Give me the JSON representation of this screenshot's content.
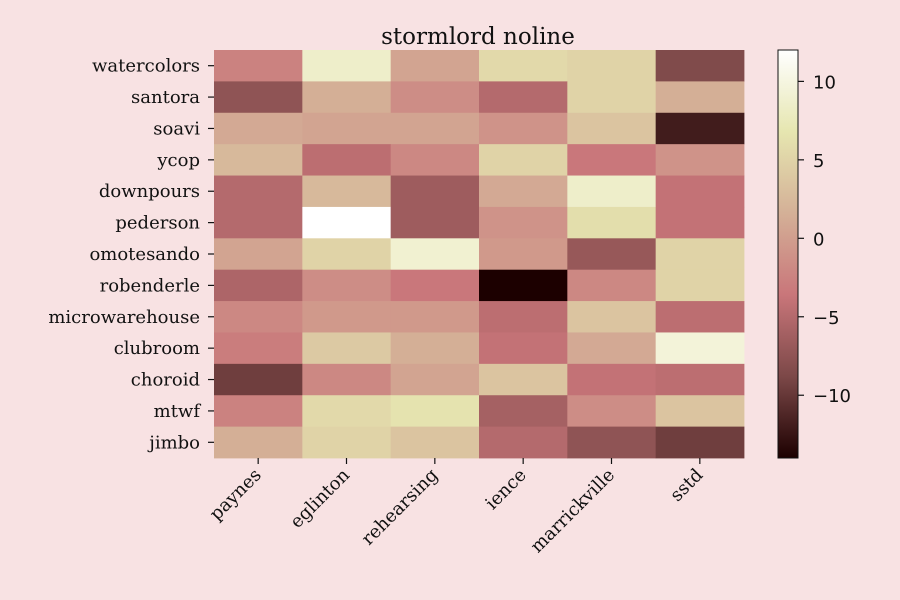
{
  "chart_data": {
    "type": "heatmap",
    "title": "stormlord noline",
    "xlabel": "",
    "ylabel": "",
    "x_categories": [
      "paynes",
      "eglinton",
      "rehearsing",
      "ience",
      "marrickville",
      "sstd"
    ],
    "y_categories": [
      "watercolors",
      "santora",
      "soavi",
      "ycop",
      "downpours",
      "pederson",
      "omotesando",
      "robenderle",
      "microwarehouse",
      "clubroom",
      "choroid",
      "mtwf",
      "jimbo"
    ],
    "values": [
      [
        -2.5,
        8.5,
        0.5,
        5.5,
        5.0,
        -8.5
      ],
      [
        -7.5,
        1.5,
        -1.5,
        -5.0,
        5.0,
        1.5
      ],
      [
        1.0,
        0.5,
        0.5,
        -1.0,
        3.5,
        -12.0
      ],
      [
        2.5,
        -4.5,
        -2.0,
        5.0,
        -3.5,
        -1.0
      ],
      [
        -5.0,
        2.5,
        -6.5,
        1.0,
        8.5,
        -4.0
      ],
      [
        -5.0,
        12.0,
        -6.5,
        -1.0,
        6.0,
        -4.0
      ],
      [
        0.5,
        5.0,
        9.0,
        -0.5,
        -7.0,
        5.0
      ],
      [
        -5.5,
        -1.5,
        -3.5,
        -14.0,
        -2.0,
        5.0
      ],
      [
        -2.0,
        -0.5,
        -0.5,
        -4.5,
        3.5,
        -4.5
      ],
      [
        -3.0,
        4.0,
        1.5,
        -4.0,
        1.0,
        9.5
      ],
      [
        -9.5,
        -2.0,
        0.5,
        3.5,
        -4.0,
        -4.5
      ],
      [
        -2.5,
        5.5,
        6.5,
        -6.0,
        -1.5,
        3.5
      ],
      [
        1.5,
        5.0,
        3.5,
        -5.0,
        -7.5,
        -9.5
      ]
    ],
    "colorbar": {
      "vmin": -14.0,
      "vmax": 12.0,
      "ticks": [
        10,
        5,
        0,
        -5,
        -10
      ],
      "tick_labels": [
        "10",
        "5",
        "0",
        "−5",
        "−10"
      ]
    },
    "grid": false,
    "colors": {
      "background": "#f8e2e3",
      "colormap_stops": [
        "#1c0000",
        "#7c4848",
        "#c9767a",
        "#d4b097",
        "#e6e6b0",
        "#ffffff"
      ]
    }
  }
}
